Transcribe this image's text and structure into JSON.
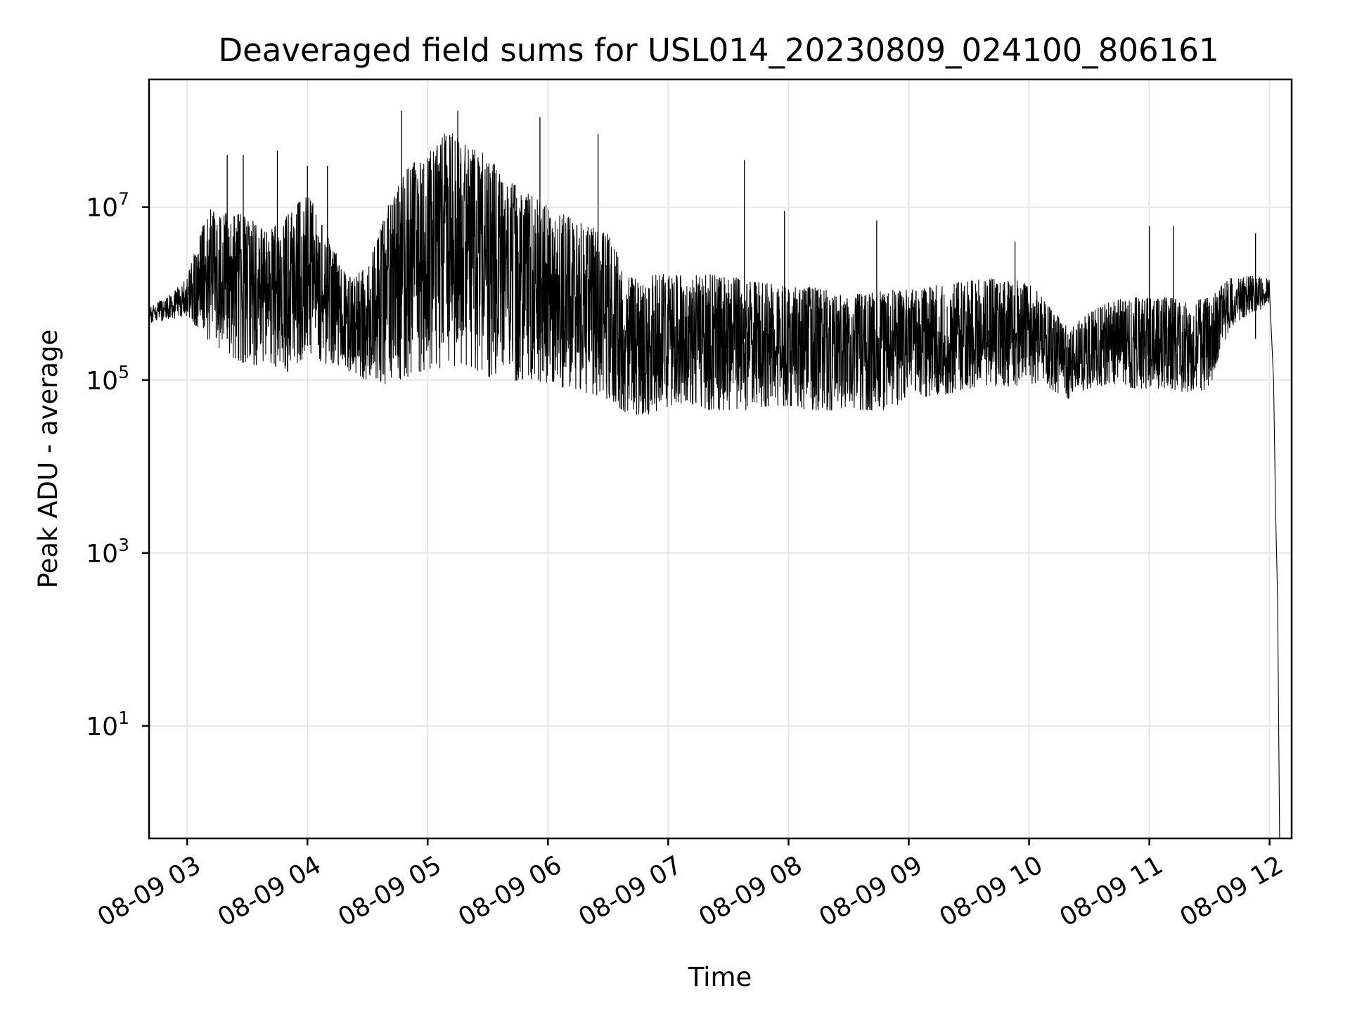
{
  "chart_data": {
    "type": "line",
    "title": "Deaveraged field sums for USL014_20230809_024100_806161",
    "xlabel": "Time",
    "ylabel": "Peak ADU - average",
    "yscale": "log",
    "grid": true,
    "line_color": "#000000",
    "xlim": [
      "2023-08-09 02:41",
      "2023-08-09 12:11"
    ],
    "ylim": [
      0.5,
      300000000
    ],
    "x_ticks": [
      {
        "value": "2023-08-09 03:00",
        "label": "08-09 03"
      },
      {
        "value": "2023-08-09 04:00",
        "label": "08-09 04"
      },
      {
        "value": "2023-08-09 05:00",
        "label": "08-09 05"
      },
      {
        "value": "2023-08-09 06:00",
        "label": "08-09 06"
      },
      {
        "value": "2023-08-09 07:00",
        "label": "08-09 07"
      },
      {
        "value": "2023-08-09 08:00",
        "label": "08-09 08"
      },
      {
        "value": "2023-08-09 09:00",
        "label": "08-09 09"
      },
      {
        "value": "2023-08-09 10:00",
        "label": "08-09 10"
      },
      {
        "value": "2023-08-09 11:00",
        "label": "08-09 11"
      },
      {
        "value": "2023-08-09 12:00",
        "label": "08-09 12"
      }
    ],
    "y_ticks": [
      {
        "value": 10,
        "base": "10",
        "exp": "1"
      },
      {
        "value": 1000,
        "base": "10",
        "exp": "3"
      },
      {
        "value": 100000,
        "base": "10",
        "exp": "5"
      },
      {
        "value": 10000000,
        "base": "10",
        "exp": "7"
      }
    ],
    "series": [
      {
        "x": [
          "2023-08-09 02:41",
          "2023-08-09 02:50",
          "2023-08-09 03:00",
          "2023-08-09 03:10",
          "2023-08-09 03:20",
          "2023-08-09 03:30",
          "2023-08-09 03:40",
          "2023-08-09 03:50",
          "2023-08-09 04:00",
          "2023-08-09 04:10",
          "2023-08-09 04:20",
          "2023-08-09 04:30",
          "2023-08-09 04:40",
          "2023-08-09 04:50",
          "2023-08-09 05:00",
          "2023-08-09 05:10",
          "2023-08-09 05:20",
          "2023-08-09 05:30",
          "2023-08-09 05:40",
          "2023-08-09 05:50",
          "2023-08-09 06:00",
          "2023-08-09 06:10",
          "2023-08-09 06:20",
          "2023-08-09 06:30",
          "2023-08-09 06:40",
          "2023-08-09 06:50",
          "2023-08-09 07:00",
          "2023-08-09 07:10",
          "2023-08-09 07:20",
          "2023-08-09 07:30",
          "2023-08-09 07:40",
          "2023-08-09 07:50",
          "2023-08-09 08:00",
          "2023-08-09 08:10",
          "2023-08-09 08:20",
          "2023-08-09 08:30",
          "2023-08-09 08:40",
          "2023-08-09 08:50",
          "2023-08-09 09:00",
          "2023-08-09 09:10",
          "2023-08-09 09:20",
          "2023-08-09 09:30",
          "2023-08-09 09:40",
          "2023-08-09 09:50",
          "2023-08-09 10:00",
          "2023-08-09 10:10",
          "2023-08-09 10:20",
          "2023-08-09 10:30",
          "2023-08-09 10:40",
          "2023-08-09 10:50",
          "2023-08-09 11:00",
          "2023-08-09 11:10",
          "2023-08-09 11:20",
          "2023-08-09 11:30",
          "2023-08-09 11:40",
          "2023-08-09 11:50",
          "2023-08-09 12:00",
          "2023-08-09 12:02",
          "2023-08-09 12:03",
          "2023-08-09 12:04",
          "2023-08-09 12:05"
        ],
        "lo": [
          450000,
          500000,
          550000,
          300000,
          200000,
          150000,
          150000,
          120000,
          200000,
          150000,
          120000,
          100000,
          90000,
          110000,
          120000,
          130000,
          150000,
          110000,
          100000,
          90000,
          90000,
          80000,
          70000,
          60000,
          40000,
          40000,
          50000,
          55000,
          45000,
          45000,
          45000,
          50000,
          50000,
          45000,
          45000,
          45000,
          45000,
          45000,
          60000,
          65000,
          70000,
          80000,
          80000,
          85000,
          90000,
          80000,
          60000,
          80000,
          90000,
          80000,
          80000,
          80000,
          70000,
          80000,
          400000,
          600000,
          700000,
          100000,
          3000,
          300,
          0.5
        ],
        "hi": [
          700000,
          900000,
          1500000,
          10000000,
          9000000,
          8000000,
          5000000,
          8000000,
          15000000,
          5000000,
          1500000,
          2000000,
          10000000,
          30000000,
          40000000,
          80000000,
          50000000,
          40000000,
          20000000,
          15000000,
          10000000,
          8000000,
          6000000,
          5000000,
          1500000,
          1600000,
          1700000,
          1600000,
          1700000,
          1600000,
          1400000,
          1300000,
          1200000,
          1200000,
          1100000,
          1000000,
          1000000,
          1100000,
          1100000,
          1200000,
          1300000,
          1400000,
          1500000,
          1400000,
          1400000,
          700000,
          400000,
          600000,
          800000,
          900000,
          900000,
          900000,
          800000,
          900000,
          1500000,
          1600000,
          1500000,
          900000,
          8000,
          800,
          0.5
        ]
      }
    ],
    "spikes": [
      {
        "x": "2023-08-09 03:20",
        "y": 40000000
      },
      {
        "x": "2023-08-09 03:28",
        "y": 40000000
      },
      {
        "x": "2023-08-09 03:45",
        "y": 45000000
      },
      {
        "x": "2023-08-09 04:00",
        "y": 30000000
      },
      {
        "x": "2023-08-09 04:10",
        "y": 30000000
      },
      {
        "x": "2023-08-09 04:47",
        "y": 130000000
      },
      {
        "x": "2023-08-09 05:15",
        "y": 130000000
      },
      {
        "x": "2023-08-09 05:56",
        "y": 110000000
      },
      {
        "x": "2023-08-09 06:25",
        "y": 70000000
      },
      {
        "x": "2023-08-09 07:38",
        "y": 35000000
      },
      {
        "x": "2023-08-09 07:58",
        "y": 9000000
      },
      {
        "x": "2023-08-09 08:44",
        "y": 7000000
      },
      {
        "x": "2023-08-09 09:53",
        "y": 4000000
      },
      {
        "x": "2023-08-09 11:00",
        "y": 6000000
      },
      {
        "x": "2023-08-09 11:12",
        "y": 6000000
      },
      {
        "x": "2023-08-09 11:53",
        "y": 5000000
      }
    ]
  }
}
